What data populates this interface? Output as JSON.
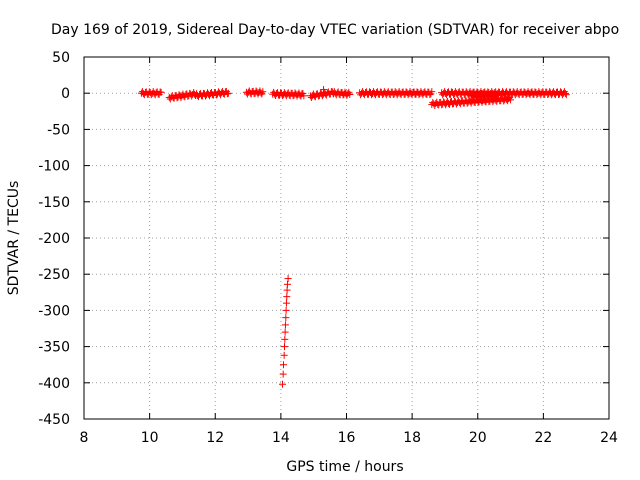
{
  "chart_data": {
    "type": "scatter",
    "title": "Day 169 of 2019, Sidereal Day-to-day VTEC variation (SDTVAR) for receiver abpo",
    "xlabel": "GPS time / hours",
    "ylabel": "SDTVAR / TECUs",
    "xlim": [
      8,
      24
    ],
    "ylim": [
      -450,
      50
    ],
    "xticks": [
      "8",
      "10",
      "12",
      "14",
      "16",
      "18",
      "20",
      "22",
      "24"
    ],
    "yticks": [
      "50",
      "0",
      "-50",
      "-100",
      "-150",
      "-200",
      "-250",
      "-300",
      "-350",
      "-400",
      "-450"
    ],
    "grid": true,
    "marker": "+",
    "marker_color": "#ff0000",
    "segments": [
      {
        "x_start": 9.75,
        "x_end": 10.35,
        "y_start": 0,
        "y_end": 0
      },
      {
        "x_start": 10.6,
        "x_end": 11.4,
        "y_start": -6,
        "y_end": -1
      },
      {
        "x_start": 11.4,
        "x_end": 12.4,
        "y_start": -3,
        "y_end": 1
      },
      {
        "x_start": 12.95,
        "x_end": 13.45,
        "y_start": 1,
        "y_end": 1
      },
      {
        "x_start": 13.75,
        "x_end": 14.7,
        "y_start": -1,
        "y_end": -2
      },
      {
        "x_start": 14.9,
        "x_end": 15.6,
        "y_start": -4,
        "y_end": 1
      },
      {
        "x_start": 15.6,
        "x_end": 16.1,
        "y_start": 0,
        "y_end": -1
      },
      {
        "x_start": 16.4,
        "x_end": 18.6,
        "y_start": 0,
        "y_end": 0
      },
      {
        "x_start": 18.6,
        "x_end": 21.0,
        "y_start": -15,
        "y_end": -8
      },
      {
        "x_start": 18.9,
        "x_end": 22.7,
        "y_start": 0,
        "y_end": 0
      },
      {
        "x_start": 19.8,
        "x_end": 20.6,
        "y_start": -3,
        "y_end": -3
      }
    ],
    "points": [
      {
        "x": 14.05,
        "y": -402
      },
      {
        "x": 14.07,
        "y": -388
      },
      {
        "x": 14.08,
        "y": -375
      },
      {
        "x": 14.1,
        "y": -362
      },
      {
        "x": 14.11,
        "y": -350
      },
      {
        "x": 14.12,
        "y": -340
      },
      {
        "x": 14.13,
        "y": -330
      },
      {
        "x": 14.14,
        "y": -320
      },
      {
        "x": 14.15,
        "y": -310
      },
      {
        "x": 14.16,
        "y": -300
      },
      {
        "x": 14.17,
        "y": -290
      },
      {
        "x": 14.18,
        "y": -281
      },
      {
        "x": 14.19,
        "y": -272
      },
      {
        "x": 14.2,
        "y": -264
      },
      {
        "x": 14.22,
        "y": -256
      },
      {
        "x": 15.3,
        "y": 5
      }
    ]
  }
}
